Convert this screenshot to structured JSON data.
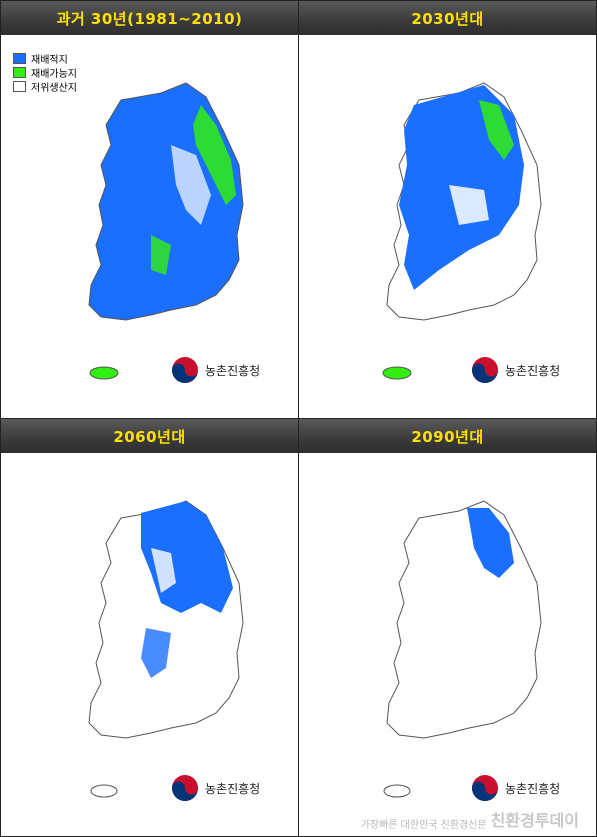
{
  "panels": [
    {
      "title": "과거 30년(1981~2010)",
      "scenario": "past"
    },
    {
      "title": "2030년대",
      "scenario": "2030"
    },
    {
      "title": "2060년대",
      "scenario": "2060"
    },
    {
      "title": "2090년대",
      "scenario": "2090"
    }
  ],
  "legend": {
    "items": [
      {
        "label": "재배적지",
        "color": "#1a6fff"
      },
      {
        "label": "재배가능지",
        "color": "#33ee11"
      },
      {
        "label": "저위생산지",
        "color": "#ffffff"
      }
    ]
  },
  "agency": {
    "name": "농촌진흥청"
  },
  "watermark": {
    "small": "가장빠른 대한민국 친환경신문",
    "big": "친환경투데이"
  },
  "colors": {
    "suitable": "#1a6fff",
    "possible": "#33ee11",
    "low": "#ffffff",
    "outline": "#555555",
    "header_text": "#ffe000"
  }
}
